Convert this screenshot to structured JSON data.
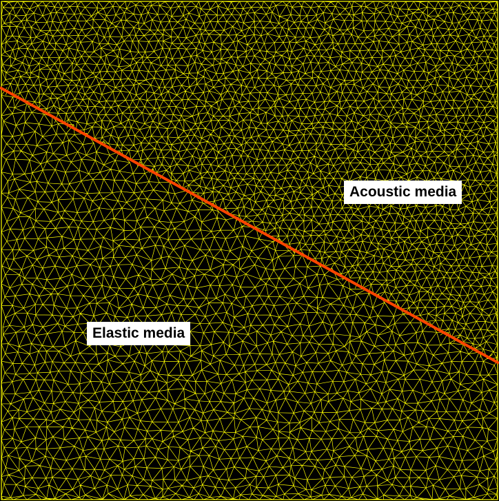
{
  "labels": {
    "acoustic": "Acoustic media",
    "elastic": "Elastic media"
  },
  "colors": {
    "background": "#000000",
    "mesh": "#ffff00",
    "interface": "#ff4500",
    "label_background": "#ffffff",
    "label_text": "#000000"
  }
}
